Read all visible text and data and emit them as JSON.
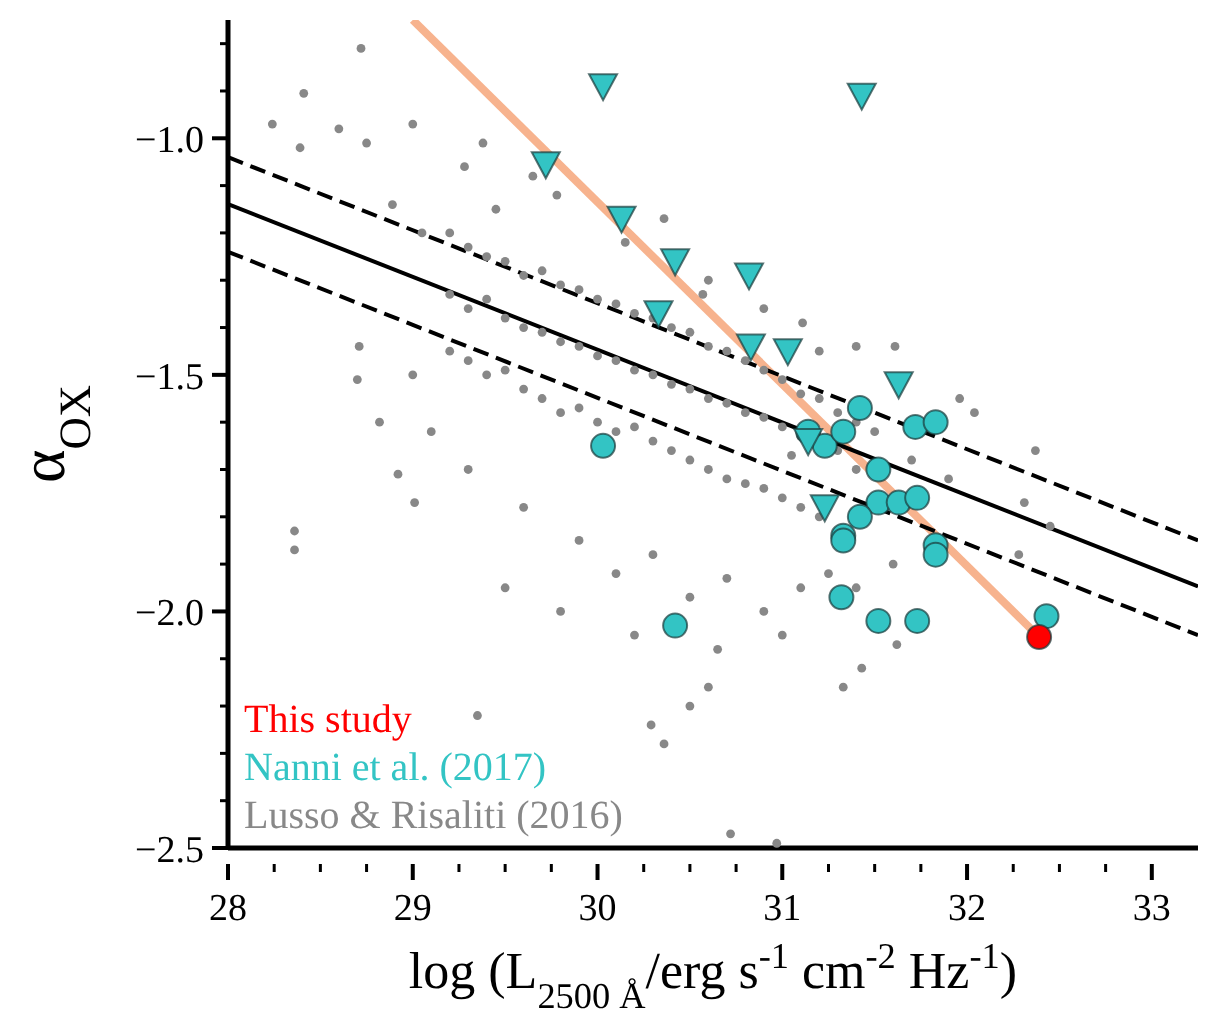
{
  "chart_data": {
    "type": "scatter",
    "xlabel": "log (L$_{2500 Å}$/erg s$^{-1}$ cm$^{-2}$ Hz$^{-1}$)",
    "ylabel": "α$_{OX}$",
    "xlim": [
      28,
      33.25
    ],
    "ylim": [
      -2.5,
      -0.75
    ],
    "xticks": [
      28,
      {
        "value": 28.25,
        "label": null
      },
      {
        "value": 28.5,
        "label": null
      },
      {
        "value": 28.75,
        "label": null
      },
      29,
      {
        "value": 29.25,
        "label": null
      },
      {
        "value": 29.5,
        "label": null
      },
      {
        "value": 29.75,
        "label": null
      },
      30,
      {
        "value": 30.25,
        "label": null
      },
      {
        "value": 30.5,
        "label": null
      },
      {
        "value": 30.75,
        "label": null
      },
      31,
      {
        "value": 31.25,
        "label": null
      },
      {
        "value": 31.5,
        "label": null
      },
      {
        "value": 31.75,
        "label": null
      },
      32,
      {
        "value": 32.25,
        "label": null
      },
      {
        "value": 32.5,
        "label": null
      },
      {
        "value": 32.75,
        "label": null
      },
      33
    ],
    "yticks": [
      {
        "value": -2.5,
        "label": "−2.5"
      },
      {
        "value": -2.4,
        "label": null
      },
      {
        "value": -2.3,
        "label": null
      },
      {
        "value": -2.2,
        "label": null
      },
      {
        "value": -2.1,
        "label": null
      },
      {
        "value": -2.0,
        "label": "−2.0"
      },
      {
        "value": -1.9,
        "label": null
      },
      {
        "value": -1.8,
        "label": null
      },
      {
        "value": -1.7,
        "label": null
      },
      {
        "value": -1.6,
        "label": null
      },
      {
        "value": -1.5,
        "label": "−1.5"
      },
      {
        "value": -1.4,
        "label": null
      },
      {
        "value": -1.3,
        "label": null
      },
      {
        "value": -1.2,
        "label": null
      },
      {
        "value": -1.1,
        "label": null
      },
      {
        "value": -1.0,
        "label": "−1.0"
      },
      {
        "value": -0.9,
        "label": null
      },
      {
        "value": -0.8,
        "label": null
      }
    ],
    "legend": "bottom left",
    "series": [
      {
        "name": "Lusso & Risaliti (2016)",
        "color": "#888888",
        "marker": "circle",
        "x": [
          28.41,
          28.72,
          28.24,
          28.6,
          28.75,
          28.39,
          28.36,
          28.71,
          28.7,
          28.82,
          29.01,
          28.36,
          29.35,
          30.72,
          30.97,
          30.29,
          30.36,
          30.5,
          30.6,
          31.33,
          31.43,
          31.62,
          32.31,
          32.45,
          32.28,
          32.37,
          32.04,
          31.96,
          31.61,
          31.4,
          28.92,
          29.0,
          29.38,
          29.28,
          29.78,
          30.36,
          30.57,
          31.11,
          28.89,
          29.2,
          29.2,
          29.2,
          29.3,
          29.3,
          29.3,
          29.4,
          29.4,
          29.4,
          29.5,
          29.5,
          29.5,
          29.6,
          29.6,
          29.6,
          29.7,
          29.7,
          29.7,
          29.8,
          29.8,
          29.8,
          29.9,
          29.9,
          29.9,
          30.0,
          30.0,
          30.0,
          30.1,
          30.1,
          30.1,
          30.2,
          30.2,
          30.2,
          30.3,
          30.3,
          30.3,
          30.4,
          30.4,
          30.4,
          30.5,
          30.5,
          30.5,
          30.6,
          30.6,
          30.6,
          30.7,
          30.7,
          30.7,
          30.8,
          30.8,
          30.8,
          30.9,
          30.9,
          30.9,
          31.0,
          31.0,
          31.0,
          31.1,
          31.1,
          31.1,
          31.2,
          31.05,
          31.2,
          31.3,
          31.3,
          31.25,
          31.4,
          31.4,
          29.6,
          29.9,
          30.1,
          30.3,
          30.5,
          30.7,
          30.9,
          31.1,
          30.2,
          29.8,
          29.5,
          30.65,
          31.0,
          29.3,
          29.1,
          29.0,
          29.05,
          29.45,
          29.65,
          30.15,
          30.6,
          30.9,
          31.2,
          31.5,
          31.7,
          31.9,
          31.6,
          31.4
        ],
        "values": [
          -0.905,
          -0.81,
          -0.97,
          -0.98,
          -1.01,
          -1.02,
          -1.87,
          -1.44,
          -1.51,
          -1.6,
          -1.77,
          -1.83,
          -2.22,
          -2.47,
          -2.49,
          -2.24,
          -2.28,
          -2.2,
          -2.16,
          -2.16,
          -2.12,
          -2.07,
          -1.77,
          -1.82,
          -1.88,
          -1.66,
          -1.58,
          -1.55,
          -1.44,
          -1.44,
          -1.71,
          -0.97,
          -1.01,
          -1.06,
          -1.12,
          -1.17,
          -1.33,
          -1.39,
          -1.14,
          -1.2,
          -1.33,
          -1.45,
          -1.23,
          -1.36,
          -1.47,
          -1.25,
          -1.34,
          -1.5,
          -1.26,
          -1.38,
          -1.49,
          -1.29,
          -1.4,
          -1.53,
          -1.28,
          -1.41,
          -1.55,
          -1.31,
          -1.43,
          -1.58,
          -1.32,
          -1.44,
          -1.57,
          -1.34,
          -1.46,
          -1.6,
          -1.35,
          -1.47,
          -1.62,
          -1.37,
          -1.49,
          -1.61,
          -1.38,
          -1.5,
          -1.64,
          -1.4,
          -1.52,
          -1.66,
          -1.41,
          -1.53,
          -1.68,
          -1.44,
          -1.55,
          -1.7,
          -1.45,
          -1.56,
          -1.72,
          -1.47,
          -1.58,
          -1.73,
          -1.49,
          -1.59,
          -1.74,
          -1.51,
          -1.61,
          -1.76,
          -1.54,
          -1.63,
          -1.78,
          -1.55,
          -1.67,
          -1.8,
          -1.58,
          -1.66,
          -1.92,
          -1.6,
          -1.7,
          -1.78,
          -1.85,
          -1.92,
          -1.88,
          -1.97,
          -1.93,
          -2.0,
          -1.95,
          -2.05,
          -2.0,
          -1.95,
          -2.08,
          -2.05,
          -1.7,
          -1.62,
          -1.5,
          -1.2,
          -1.15,
          -1.08,
          -1.22,
          -1.3,
          -1.36,
          -1.45,
          -1.62,
          -1.68,
          -1.72,
          -1.9,
          -1.95
        ]
      },
      {
        "name": "Nanni et al. (2017)",
        "color": "#33c4c4",
        "marker": "circle",
        "x": [
          30.03,
          31.42,
          31.72,
          31.83,
          31.14,
          31.23,
          31.33,
          31.52,
          31.52,
          31.63,
          31.73,
          31.42,
          31.33,
          31.33,
          31.83,
          31.83,
          31.32,
          31.52,
          31.73,
          30.42,
          32.43
        ],
        "values": [
          -1.65,
          -1.57,
          -1.61,
          -1.6,
          -1.62,
          -1.65,
          -1.62,
          -1.7,
          -1.77,
          -1.77,
          -1.76,
          -1.8,
          -1.84,
          -1.85,
          -1.86,
          -1.88,
          -1.97,
          -2.02,
          -2.02,
          -2.03,
          -2.01
        ]
      },
      {
        "color": "#33c4c4",
        "marker": "triangle",
        "x": [
          30.03,
          31.43,
          29.72,
          30.13,
          30.42,
          30.82,
          30.33,
          30.83,
          31.03,
          31.63,
          31.14,
          31.23
        ],
        "values": [
          -0.89,
          -0.91,
          -1.055,
          -1.17,
          -1.26,
          -1.29,
          -1.37,
          -1.44,
          -1.45,
          -1.52,
          -1.64,
          -1.78
        ]
      },
      {
        "type": "line",
        "color": "#f7b38e",
        "line_style": "solid",
        "x": [
          29.0,
          32.39
        ],
        "values": [
          -0.75,
          -2.054
        ]
      },
      {
        "type": "line",
        "color": "#000000",
        "line_style": "solid",
        "x": [
          28,
          33.25
        ],
        "values": [
          -1.139,
          -1.947
        ]
      },
      {
        "type": "line",
        "color": "#000000",
        "line_style": "dashed",
        "x": [
          28,
          33.25
        ],
        "values": [
          -1.04,
          -1.85
        ]
      },
      {
        "type": "line",
        "color": "#000000",
        "line_style": "dashed",
        "x": [
          28,
          33.25
        ],
        "values": [
          -1.24,
          -2.05
        ]
      },
      {
        "name": "This study",
        "color": "#ff0000",
        "marker": "circle",
        "x": [
          32.39
        ],
        "values": [
          -2.054
        ]
      }
    ]
  }
}
